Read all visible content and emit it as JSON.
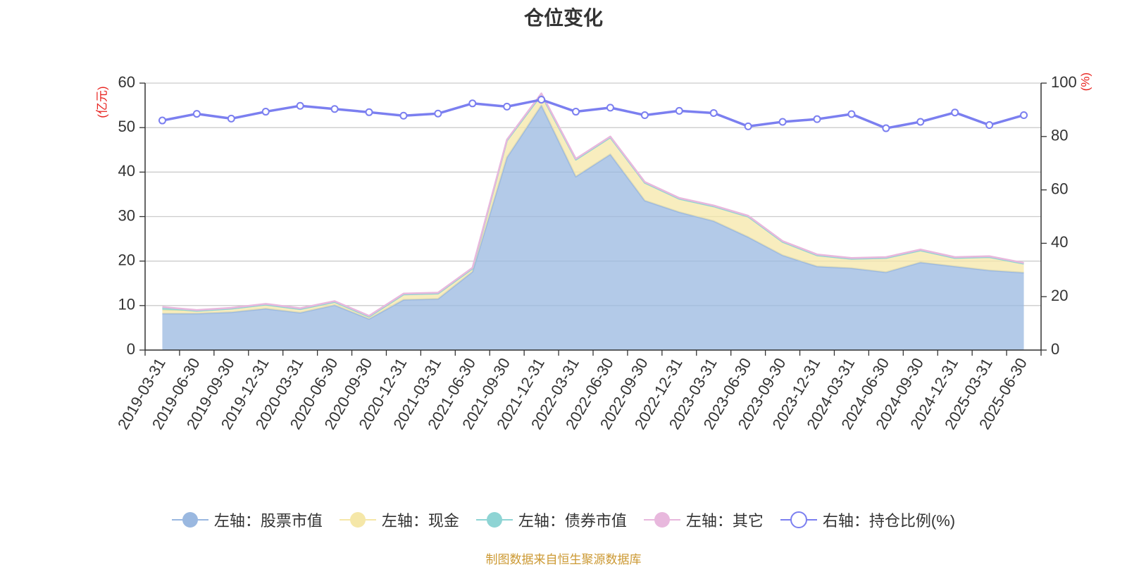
{
  "chart_data": {
    "type": "area",
    "title": "仓位变化",
    "left_axis": {
      "label": "(亿元)",
      "ylim": [
        0,
        60
      ],
      "ticks": [
        0,
        10,
        20,
        30,
        40,
        50,
        60
      ]
    },
    "right_axis": {
      "label": "(%)",
      "ylim": [
        0,
        100
      ],
      "ticks": [
        0,
        20,
        40,
        60,
        80,
        100
      ]
    },
    "categories": [
      "2019-03-31",
      "2019-06-30",
      "2019-09-30",
      "2019-12-31",
      "2020-03-31",
      "2020-06-30",
      "2020-09-30",
      "2020-12-31",
      "2021-03-31",
      "2021-06-30",
      "2021-09-30",
      "2021-12-31",
      "2022-03-31",
      "2022-06-30",
      "2022-09-30",
      "2022-12-31",
      "2023-03-31",
      "2023-06-30",
      "2023-09-30",
      "2023-12-31",
      "2024-03-31",
      "2024-06-30",
      "2024-09-30",
      "2024-12-31",
      "2025-03-31",
      "2025-06-30"
    ],
    "stacked": true,
    "series": [
      {
        "name": "左轴：股票市值",
        "axis": "left",
        "color": "#9ab8e0",
        "values": [
          8.2,
          8.2,
          8.5,
          9.3,
          8.4,
          10.1,
          7.0,
          11.3,
          11.5,
          17.6,
          43.3,
          55.0,
          39.0,
          44.0,
          33.6,
          31.0,
          29.0,
          25.4,
          21.3,
          18.8,
          18.4,
          17.5,
          19.7,
          18.8,
          17.9,
          17.4
        ]
      },
      {
        "name": "左轴：现金",
        "axis": "left",
        "color": "#f5e7a8",
        "values": [
          0.8,
          0.6,
          0.8,
          0.9,
          0.8,
          0.7,
          0.5,
          1.2,
          1.2,
          0.7,
          3.8,
          2.4,
          3.8,
          3.8,
          4.0,
          3.0,
          3.3,
          4.6,
          3.0,
          2.5,
          2.1,
          3.2,
          2.7,
          1.9,
          3.0,
          2.0
        ]
      },
      {
        "name": "左轴：债券市值",
        "axis": "left",
        "color": "#8ed4d4",
        "values": [
          0.5,
          0.0,
          0.0,
          0.0,
          0.0,
          0.0,
          0.0,
          0.0,
          0.0,
          0.0,
          0.0,
          0.0,
          0.0,
          0.0,
          0.0,
          0.0,
          0.0,
          0.0,
          0.0,
          0.0,
          0.0,
          0.0,
          0.0,
          0.0,
          0.0,
          0.0
        ]
      },
      {
        "name": "左轴：其它",
        "axis": "left",
        "color": "#e8b8dd",
        "values": [
          0.2,
          0.2,
          0.2,
          0.2,
          0.2,
          0.2,
          0.2,
          0.2,
          0.2,
          0.2,
          0.2,
          0.3,
          0.2,
          0.2,
          0.2,
          0.2,
          0.2,
          0.2,
          0.2,
          0.2,
          0.2,
          0.2,
          0.2,
          0.2,
          0.2,
          0.2
        ]
      },
      {
        "name": "右轴：持仓比例(%)",
        "axis": "right",
        "color": "#7b7ff0",
        "type": "line",
        "values": [
          86.0,
          88.5,
          86.7,
          89.3,
          91.5,
          90.3,
          89.1,
          87.8,
          88.6,
          92.4,
          91.2,
          93.8,
          89.3,
          90.8,
          88.0,
          89.6,
          88.8,
          83.8,
          85.5,
          86.5,
          88.4,
          83.1,
          85.5,
          89.0,
          84.3,
          88.0
        ]
      }
    ],
    "grid": true,
    "legend_position": "bottom"
  },
  "source_note": "制图数据来自恒生聚源数据库"
}
